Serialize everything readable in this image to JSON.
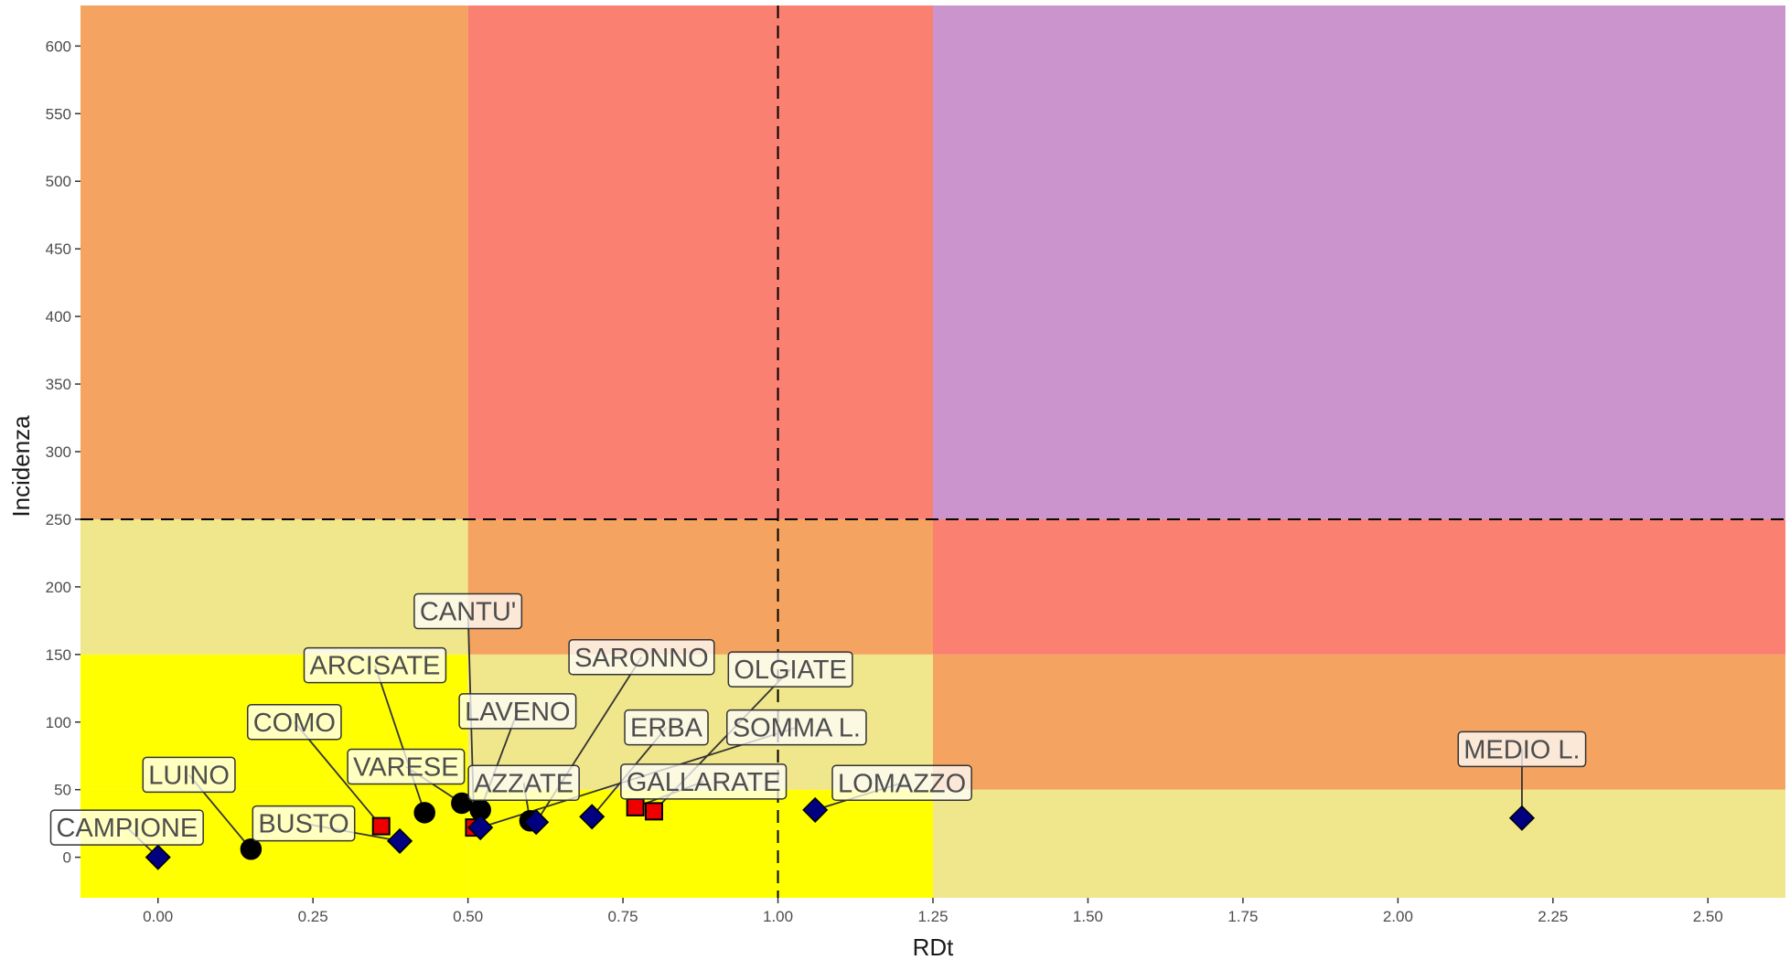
{
  "chart_data": {
    "type": "scatter",
    "xlabel": "RDt",
    "ylabel": "Incidenza",
    "xlim": [
      -0.125,
      2.625
    ],
    "ylim": [
      -30,
      630
    ],
    "x_ticks": [
      "0.00",
      "0.25",
      "0.50",
      "0.75",
      "1.00",
      "1.25",
      "1.50",
      "1.75",
      "2.00",
      "2.25",
      "2.50"
    ],
    "y_ticks": [
      "0",
      "50",
      "100",
      "150",
      "200",
      "250",
      "300",
      "350",
      "400",
      "450",
      "500",
      "550",
      "600"
    ],
    "grid": false,
    "threshold_lines": {
      "x": 1.0,
      "y": 250
    },
    "zones": [
      {
        "x": [
          -0.125,
          0.5
        ],
        "y": [
          -30,
          50
        ],
        "color": "#ffff00"
      },
      {
        "x": [
          -0.125,
          0.5
        ],
        "y": [
          50,
          150
        ],
        "color": "#ffff00"
      },
      {
        "x": [
          -0.125,
          0.5
        ],
        "y": [
          150,
          250
        ],
        "color": "#f0e68c"
      },
      {
        "x": [
          -0.125,
          0.5
        ],
        "y": [
          250,
          630
        ],
        "color": "#f4a460"
      },
      {
        "x": [
          0.5,
          1.25
        ],
        "y": [
          -30,
          50
        ],
        "color": "#ffff00"
      },
      {
        "x": [
          0.5,
          1.25
        ],
        "y": [
          50,
          150
        ],
        "color": "#f0e68c"
      },
      {
        "x": [
          0.5,
          1.25
        ],
        "y": [
          150,
          250
        ],
        "color": "#f4a460"
      },
      {
        "x": [
          0.5,
          1.25
        ],
        "y": [
          250,
          630
        ],
        "color": "#fa8072"
      },
      {
        "x": [
          1.25,
          2.625
        ],
        "y": [
          -30,
          50
        ],
        "color": "#f0e68c"
      },
      {
        "x": [
          1.25,
          2.625
        ],
        "y": [
          50,
          150
        ],
        "color": "#f4a460"
      },
      {
        "x": [
          1.25,
          2.625
        ],
        "y": [
          150,
          250
        ],
        "color": "#fa8072"
      },
      {
        "x": [
          1.25,
          2.625
        ],
        "y": [
          250,
          630
        ],
        "color": "#cc94cc"
      }
    ],
    "marker_styles": {
      "circle": {
        "fill": "#000000",
        "stroke": "#000000"
      },
      "square": {
        "fill": "#ee0000",
        "stroke": "#000000"
      },
      "diamond": {
        "fill": "#000080",
        "stroke": "#000000"
      }
    },
    "points": [
      {
        "label": "CAMPIONE",
        "x": 0.0,
        "y": 0,
        "shape": "diamond",
        "lx": -0.05,
        "ly": 22
      },
      {
        "label": "LUINO",
        "x": 0.15,
        "y": 6,
        "shape": "circle",
        "lx": 0.05,
        "ly": 61
      },
      {
        "label": "BUSTO",
        "x": 0.39,
        "y": 12,
        "shape": "diamond",
        "lx": 0.235,
        "ly": 25
      },
      {
        "label": "COMO",
        "x": 0.36,
        "y": 23,
        "shape": "square",
        "lx": 0.22,
        "ly": 100
      },
      {
        "label": "ARCISATE",
        "x": 0.43,
        "y": 33,
        "shape": "circle",
        "lx": 0.35,
        "ly": 142
      },
      {
        "label": "VARESE",
        "x": 0.49,
        "y": 40,
        "shape": "circle",
        "lx": 0.4,
        "ly": 67
      },
      {
        "label": "LAVENO",
        "x": 0.52,
        "y": 35,
        "shape": "circle",
        "lx": 0.58,
        "ly": 108
      },
      {
        "label": "CANTU'",
        "x": 0.51,
        "y": 22,
        "shape": "square",
        "lx": 0.5,
        "ly": 182
      },
      {
        "label": "AZZATE",
        "x": 0.6,
        "y": 27,
        "shape": "circle",
        "lx": 0.59,
        "ly": 55
      },
      {
        "label": "SARONNO",
        "x": 0.61,
        "y": 26,
        "shape": "diamond",
        "lx": 0.78,
        "ly": 148
      },
      {
        "label": "ERBA",
        "x": 0.7,
        "y": 30,
        "shape": "diamond",
        "lx": 0.82,
        "ly": 96
      },
      {
        "label": "GALLARATE",
        "x": 0.77,
        "y": 37,
        "shape": "square",
        "lx": 0.88,
        "ly": 56
      },
      {
        "label": "OLGIATE",
        "x": 0.8,
        "y": 34,
        "shape": "square",
        "lx": 1.02,
        "ly": 139
      },
      {
        "label": "SOMMA L.",
        "x": 0.52,
        "y": 22,
        "shape": "diamond",
        "lx": 1.03,
        "ly": 96
      },
      {
        "label": "LOMAZZO",
        "x": 1.06,
        "y": 35,
        "shape": "diamond",
        "lx": 1.2,
        "ly": 55
      },
      {
        "label": "MEDIO L.",
        "x": 2.2,
        "y": 29,
        "shape": "diamond",
        "lx": 2.2,
        "ly": 80
      }
    ]
  }
}
